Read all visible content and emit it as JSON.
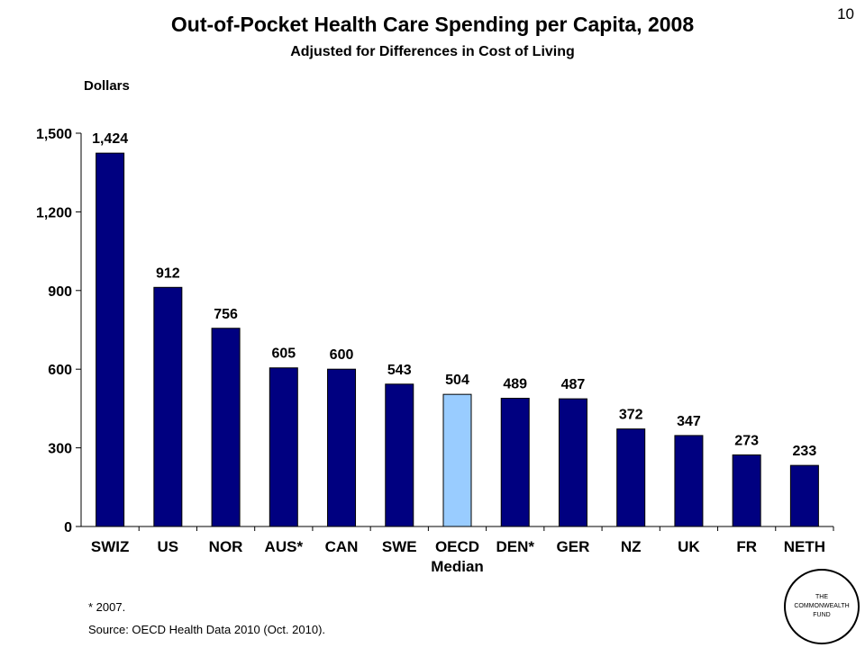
{
  "slide_number": "10",
  "footnote": "* 2007.",
  "source": "Source: OECD Health Data 2010 (Oct. 2010).",
  "logo": {
    "lines": [
      "THE",
      "COMMONWEALTH",
      "FUND"
    ]
  },
  "colors": {
    "bar": "#000080",
    "highlight_bar": "#99CCFF"
  },
  "chart_data": {
    "type": "bar",
    "title": "Out-of-Pocket Health Care Spending per Capita, 2008",
    "subtitle": "Adjusted for Differences in Cost of Living",
    "ylabel": "Dollars",
    "xlabel": "",
    "ylim": [
      0,
      1500
    ],
    "yticks": [
      0,
      300,
      600,
      900,
      1200,
      1500
    ],
    "ytick_labels": [
      "0",
      "300",
      "600",
      "900",
      "1,200",
      "1,500"
    ],
    "grid": false,
    "categories": [
      "SWIZ",
      "US",
      "NOR",
      "AUS*",
      "CAN",
      "SWE",
      "OECD",
      "DEN*",
      "GER",
      "NZ",
      "UK",
      "FR",
      "NETH"
    ],
    "category_sublabels": [
      "",
      "",
      "",
      "",
      "",
      "",
      "Median",
      "",
      "",
      "",
      "",
      "",
      ""
    ],
    "values": [
      1424,
      912,
      756,
      605,
      600,
      543,
      504,
      489,
      487,
      372,
      347,
      273,
      233
    ],
    "value_labels": [
      "1,424",
      "912",
      "756",
      "605",
      "600",
      "543",
      "504",
      "489",
      "487",
      "372",
      "347",
      "273",
      "233"
    ],
    "highlight_category": "OECD"
  }
}
